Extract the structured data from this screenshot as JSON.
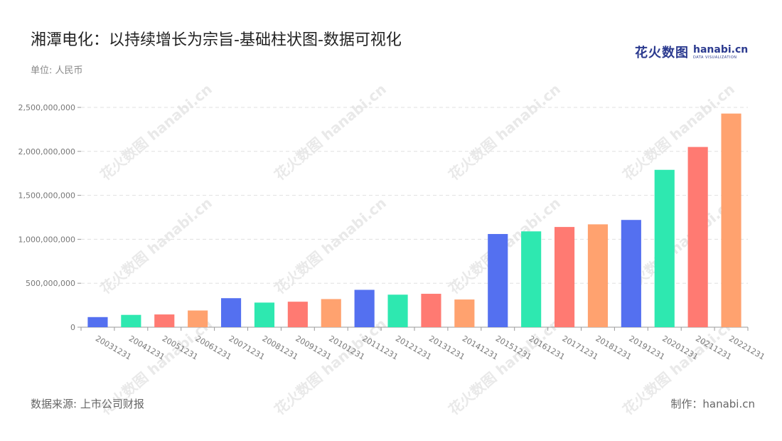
{
  "header": {
    "title": "湘潭电化：以持续增长为宗旨-基础柱状图-数据可视化",
    "unit": "单位: 人民币"
  },
  "logo": {
    "cn": "花火数图",
    "en": "hanabi.cn",
    "sub": "DATA VISUALIZATION"
  },
  "footer": {
    "source": "数据来源: 上市公司财报",
    "maker": "制作：hanabi.cn"
  },
  "colors": [
    "#5470f0",
    "#2ee8b0",
    "#ff7a72",
    "#ffa26f"
  ],
  "watermark": "花火数图 hanabi.cn",
  "chart_data": {
    "type": "bar",
    "title": "湘潭电化：以持续增长为宗旨-基础柱状图-数据可视化",
    "xlabel": "",
    "ylabel": "",
    "ylim": [
      0,
      2500000000
    ],
    "yticks": [
      0,
      500000000,
      1000000000,
      1500000000,
      2000000000,
      2500000000
    ],
    "ytick_labels": [
      "0",
      "500,000,000",
      "1,000,000,000",
      "1,500,000,000",
      "2,000,000,000",
      "2,500,000,000"
    ],
    "grid": true,
    "categories": [
      "20031231",
      "20041231",
      "20051231",
      "20061231",
      "20071231",
      "20081231",
      "20091231",
      "20101231",
      "20111231",
      "20121231",
      "20131231",
      "20141231",
      "20151231",
      "20161231",
      "20171231",
      "20181231",
      "20191231",
      "20201231",
      "20211231",
      "20221231"
    ],
    "values": [
      115000000,
      140000000,
      145000000,
      190000000,
      330000000,
      280000000,
      290000000,
      320000000,
      425000000,
      370000000,
      380000000,
      315000000,
      1060000000,
      1090000000,
      1140000000,
      1170000000,
      1220000000,
      1790000000,
      2050000000,
      2430000000
    ]
  }
}
